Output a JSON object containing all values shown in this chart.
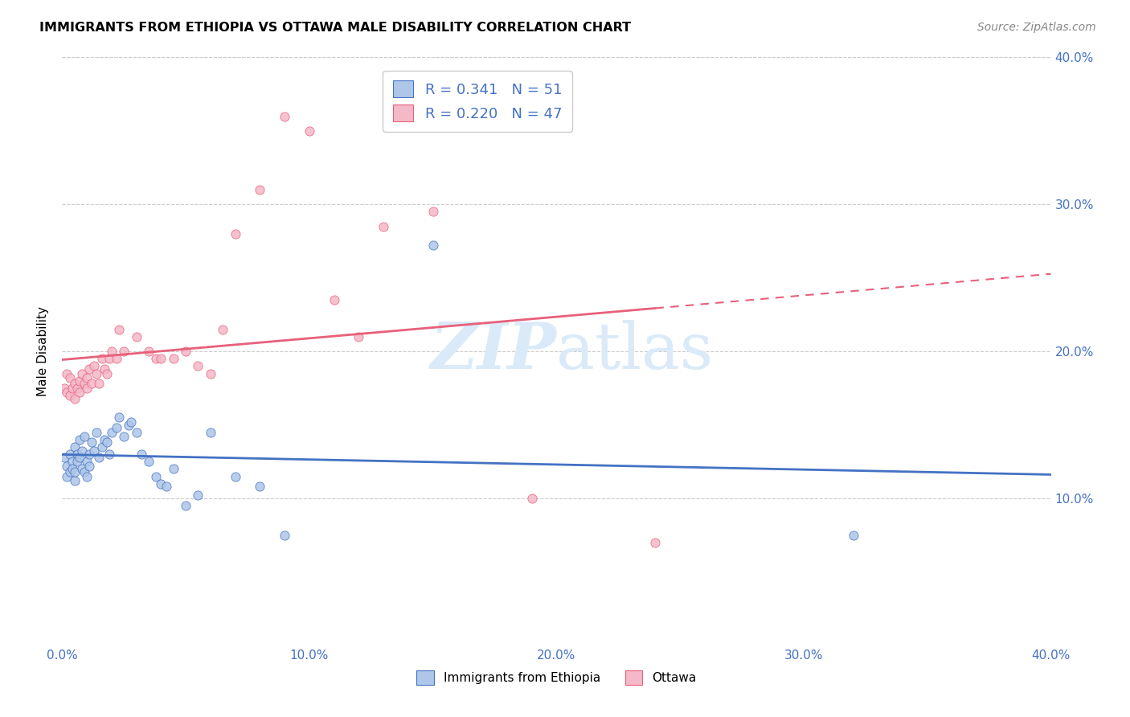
{
  "title": "IMMIGRANTS FROM ETHIOPIA VS OTTAWA MALE DISABILITY CORRELATION CHART",
  "source": "Source: ZipAtlas.com",
  "ylabel": "Male Disability",
  "xlim": [
    0.0,
    0.4
  ],
  "ylim": [
    0.0,
    0.4
  ],
  "xtick_vals": [
    0.0,
    0.1,
    0.2,
    0.3,
    0.4
  ],
  "ytick_vals": [
    0.1,
    0.2,
    0.3,
    0.4
  ],
  "legend_r1": "0.341",
  "legend_n1": "51",
  "legend_r2": "0.220",
  "legend_n2": "47",
  "color_blue": "#aec6e8",
  "color_pink": "#f4b8c8",
  "line_blue": "#4472c4",
  "line_pink": "#e8607a",
  "watermark_color": "#daeaf8",
  "ethiopia_x": [
    0.001,
    0.002,
    0.002,
    0.003,
    0.003,
    0.004,
    0.004,
    0.005,
    0.005,
    0.005,
    0.006,
    0.006,
    0.007,
    0.007,
    0.008,
    0.008,
    0.009,
    0.009,
    0.01,
    0.01,
    0.011,
    0.011,
    0.012,
    0.013,
    0.014,
    0.015,
    0.016,
    0.017,
    0.018,
    0.019,
    0.02,
    0.022,
    0.023,
    0.025,
    0.027,
    0.028,
    0.03,
    0.032,
    0.035,
    0.038,
    0.04,
    0.042,
    0.045,
    0.05,
    0.055,
    0.06,
    0.07,
    0.08,
    0.09,
    0.15,
    0.32
  ],
  "ethiopia_y": [
    0.128,
    0.122,
    0.115,
    0.13,
    0.118,
    0.125,
    0.12,
    0.112,
    0.135,
    0.118,
    0.13,
    0.125,
    0.128,
    0.14,
    0.12,
    0.132,
    0.118,
    0.142,
    0.125,
    0.115,
    0.13,
    0.122,
    0.138,
    0.132,
    0.145,
    0.128,
    0.135,
    0.14,
    0.138,
    0.13,
    0.145,
    0.148,
    0.155,
    0.142,
    0.15,
    0.152,
    0.145,
    0.13,
    0.125,
    0.115,
    0.11,
    0.108,
    0.12,
    0.095,
    0.102,
    0.145,
    0.115,
    0.108,
    0.075,
    0.272,
    0.075
  ],
  "ottawa_x": [
    0.001,
    0.002,
    0.002,
    0.003,
    0.003,
    0.004,
    0.005,
    0.005,
    0.006,
    0.007,
    0.007,
    0.008,
    0.009,
    0.01,
    0.01,
    0.011,
    0.012,
    0.013,
    0.014,
    0.015,
    0.016,
    0.017,
    0.018,
    0.019,
    0.02,
    0.022,
    0.023,
    0.025,
    0.03,
    0.035,
    0.038,
    0.04,
    0.045,
    0.05,
    0.055,
    0.06,
    0.065,
    0.07,
    0.08,
    0.09,
    0.1,
    0.11,
    0.12,
    0.13,
    0.15,
    0.19,
    0.24
  ],
  "ottawa_y": [
    0.175,
    0.172,
    0.185,
    0.17,
    0.182,
    0.175,
    0.178,
    0.168,
    0.175,
    0.18,
    0.172,
    0.185,
    0.178,
    0.175,
    0.182,
    0.188,
    0.178,
    0.19,
    0.185,
    0.178,
    0.195,
    0.188,
    0.185,
    0.195,
    0.2,
    0.195,
    0.215,
    0.2,
    0.21,
    0.2,
    0.195,
    0.195,
    0.195,
    0.2,
    0.19,
    0.185,
    0.215,
    0.28,
    0.31,
    0.36,
    0.35,
    0.235,
    0.21,
    0.285,
    0.295,
    0.1,
    0.07
  ]
}
